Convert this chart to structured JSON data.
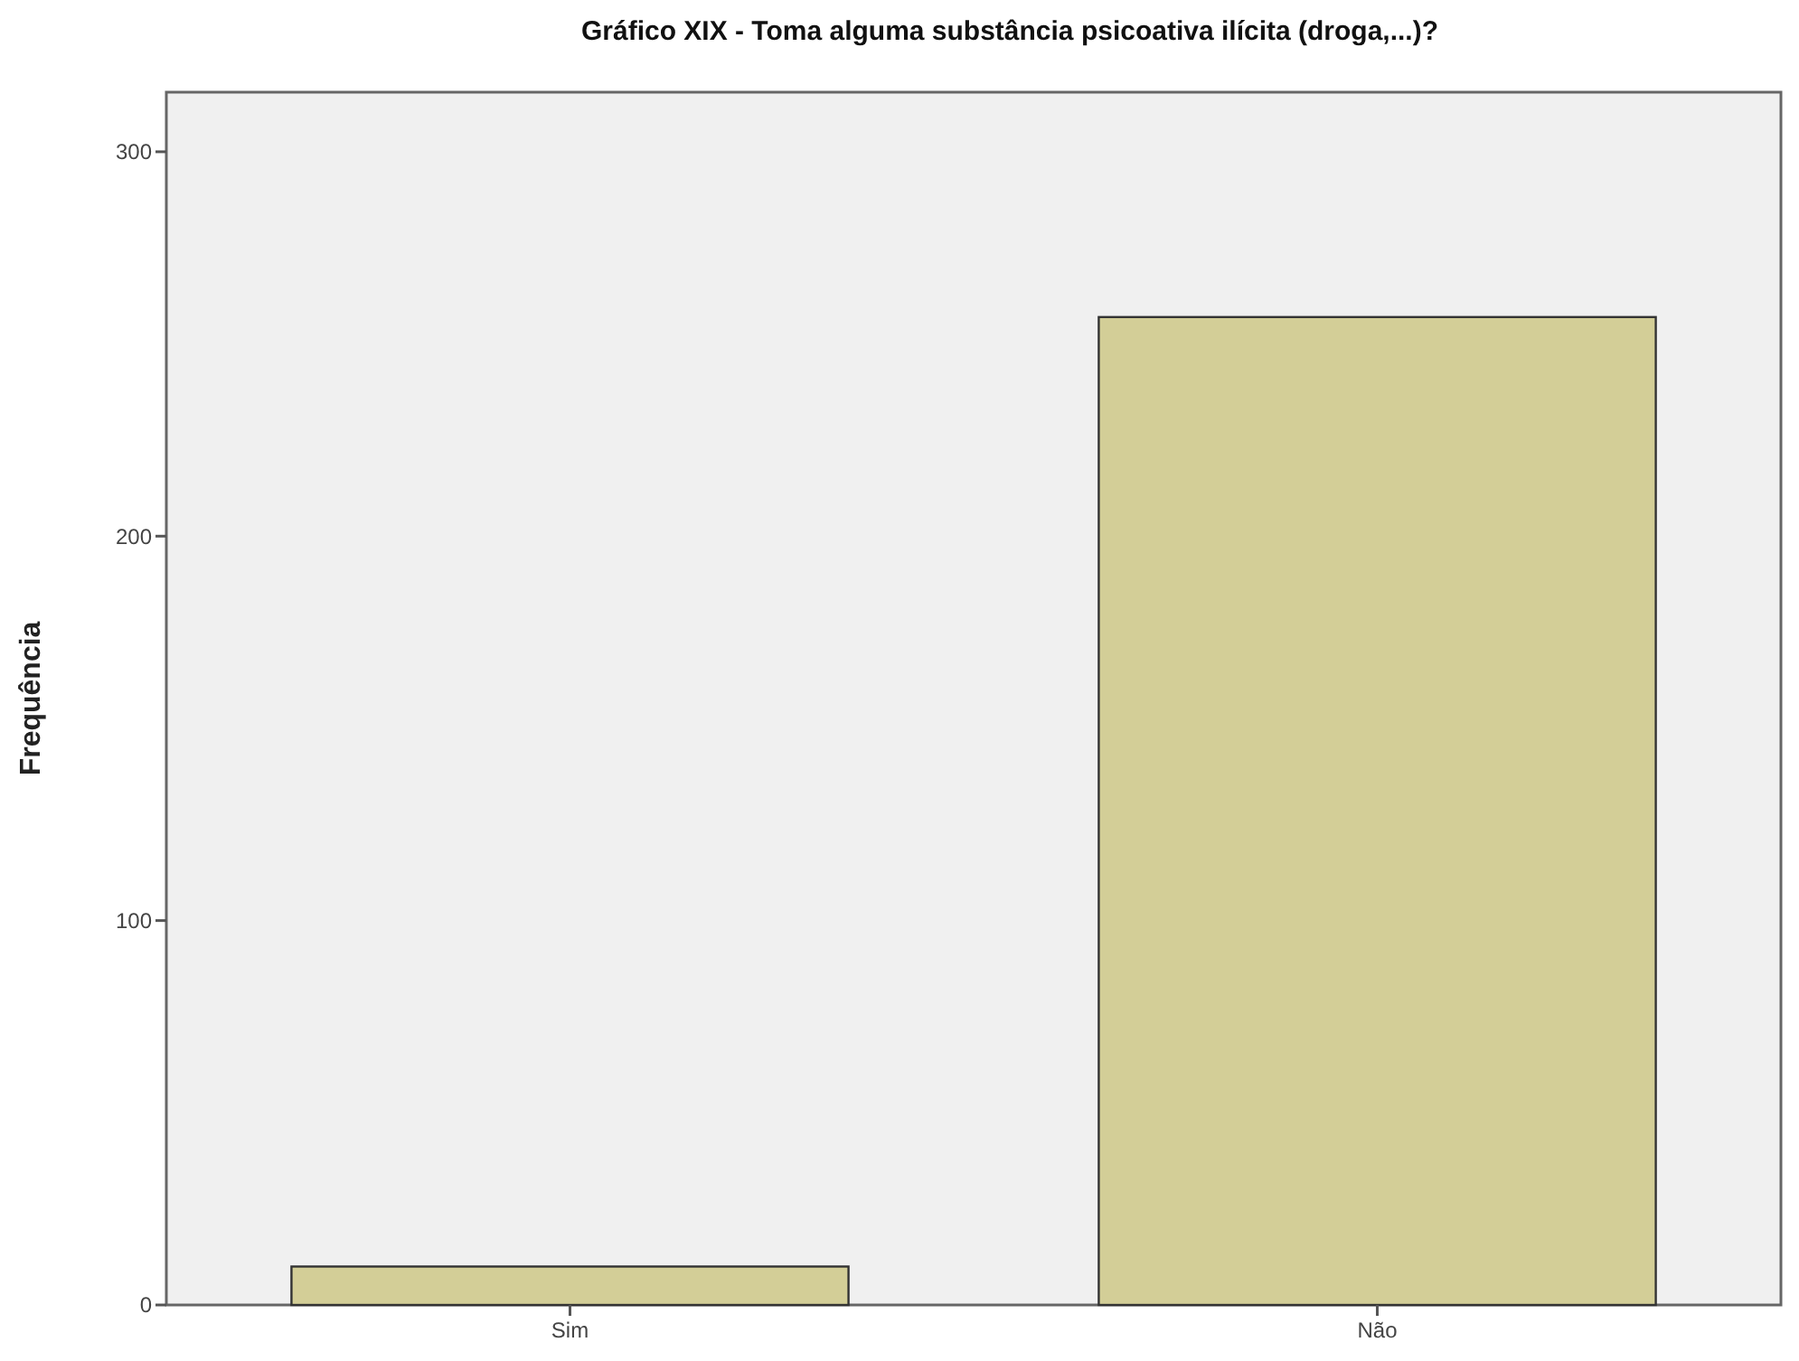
{
  "chart_data": {
    "type": "bar",
    "title": "Gráfico XIX - Toma alguma substância psicoativa ilícita (droga,...)?",
    "ylabel": "Frequência",
    "categories": [
      "Sim",
      "Não"
    ],
    "values": [
      10,
      257
    ],
    "color": "#d3ce97",
    "ylim": [
      0,
      315.5
    ],
    "yticks": [
      0,
      100,
      200,
      300
    ],
    "grid": false
  }
}
